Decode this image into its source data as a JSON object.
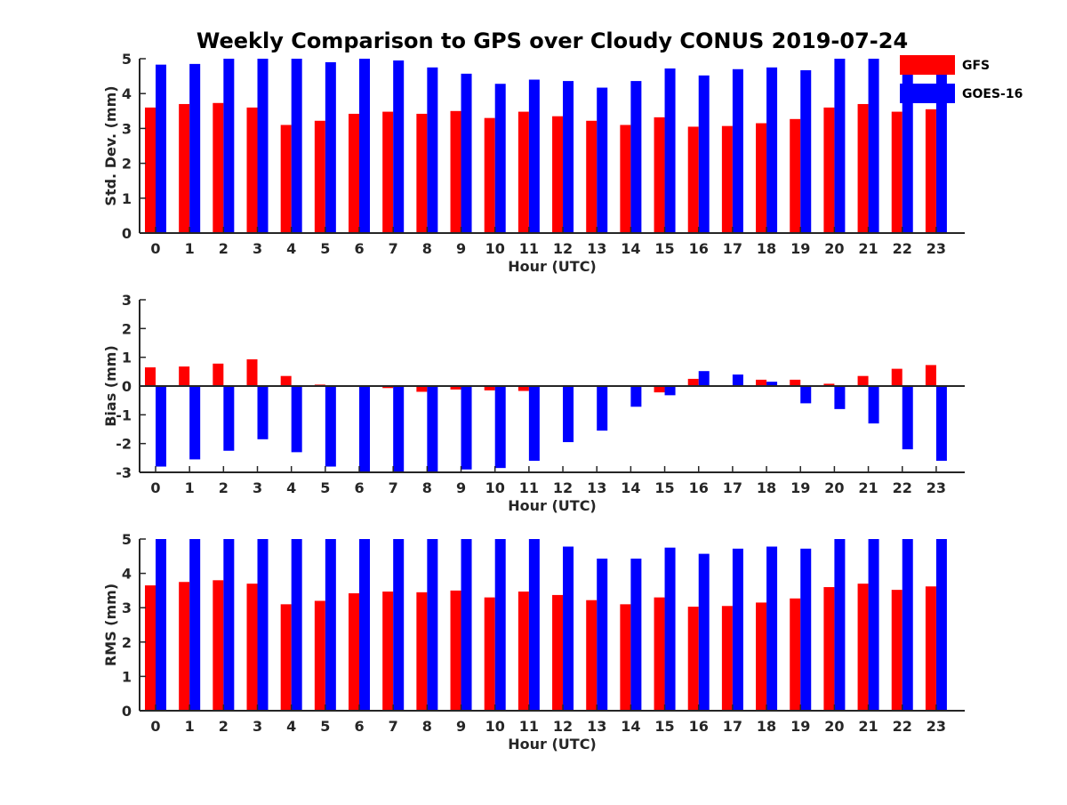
{
  "title": "Weekly Comparison to GPS over Cloudy CONUS 2019-07-24",
  "legend": {
    "placement": "top-right",
    "entries": [
      {
        "name": "GFS",
        "color": "#ff0000"
      },
      {
        "name": "GOES-16",
        "color": "#0000ff"
      }
    ]
  },
  "chart_data": [
    {
      "type": "bar",
      "xlabel": "Hour (UTC)",
      "ylabel": "Std. Dev. (mm)",
      "ylim": [
        0,
        5
      ],
      "yticks": [
        "0",
        "1",
        "2",
        "3",
        "4",
        "5"
      ],
      "categories": [
        "0",
        "1",
        "2",
        "3",
        "4",
        "5",
        "6",
        "7",
        "8",
        "9",
        "10",
        "11",
        "12",
        "13",
        "14",
        "15",
        "16",
        "17",
        "18",
        "19",
        "20",
        "21",
        "22",
        "23"
      ],
      "series": [
        {
          "name": "GFS",
          "color": "#ff0000",
          "values": [
            3.6,
            3.7,
            3.73,
            3.6,
            3.1,
            3.22,
            3.42,
            3.48,
            3.42,
            3.5,
            3.3,
            3.48,
            3.35,
            3.22,
            3.1,
            3.32,
            3.05,
            3.07,
            3.15,
            3.27,
            3.6,
            3.7,
            3.48,
            3.55
          ]
        },
        {
          "name": "GOES-16",
          "color": "#0000ff",
          "values": [
            4.83,
            4.85,
            5.0,
            5.0,
            5.0,
            4.9,
            5.0,
            4.95,
            4.75,
            4.57,
            4.28,
            4.4,
            4.36,
            4.17,
            4.36,
            4.72,
            4.52,
            4.7,
            4.75,
            4.67,
            5.0,
            5.0,
            4.82,
            4.6
          ]
        }
      ]
    },
    {
      "type": "bar",
      "xlabel": "Hour (UTC)",
      "ylabel": "Bias (mm)",
      "ylim": [
        -3,
        3
      ],
      "yticks": [
        "-3",
        "-2",
        "-1",
        "0",
        "1",
        "2",
        "3"
      ],
      "categories": [
        "0",
        "1",
        "2",
        "3",
        "4",
        "5",
        "6",
        "7",
        "8",
        "9",
        "10",
        "11",
        "12",
        "13",
        "14",
        "15",
        "16",
        "17",
        "18",
        "19",
        "20",
        "21",
        "22",
        "23"
      ],
      "series": [
        {
          "name": "GFS",
          "color": "#ff0000",
          "values": [
            0.65,
            0.68,
            0.78,
            0.93,
            0.35,
            0.05,
            -0.02,
            -0.07,
            -0.2,
            -0.12,
            -0.15,
            -0.17,
            -0.03,
            0.0,
            0.0,
            -0.22,
            0.25,
            0.03,
            0.22,
            0.22,
            0.08,
            0.35,
            0.6,
            0.73
          ]
        },
        {
          "name": "GOES-16",
          "color": "#0000ff",
          "values": [
            -2.8,
            -2.55,
            -2.25,
            -1.85,
            -2.3,
            -2.8,
            -3.0,
            -3.0,
            -3.0,
            -2.9,
            -2.85,
            -2.6,
            -1.95,
            -1.55,
            -0.72,
            -0.32,
            0.52,
            0.4,
            0.15,
            -0.6,
            -0.8,
            -1.3,
            -2.2,
            -2.6
          ]
        }
      ]
    },
    {
      "type": "bar",
      "xlabel": "Hour (UTC)",
      "ylabel": "RMS (mm)",
      "ylim": [
        0,
        5
      ],
      "yticks": [
        "0",
        "1",
        "2",
        "3",
        "4",
        "5"
      ],
      "categories": [
        "0",
        "1",
        "2",
        "3",
        "4",
        "5",
        "6",
        "7",
        "8",
        "9",
        "10",
        "11",
        "12",
        "13",
        "14",
        "15",
        "16",
        "17",
        "18",
        "19",
        "20",
        "21",
        "22",
        "23"
      ],
      "series": [
        {
          "name": "GFS",
          "color": "#ff0000",
          "values": [
            3.65,
            3.75,
            3.8,
            3.7,
            3.1,
            3.2,
            3.42,
            3.47,
            3.45,
            3.5,
            3.3,
            3.47,
            3.37,
            3.22,
            3.1,
            3.3,
            3.03,
            3.05,
            3.15,
            3.27,
            3.6,
            3.7,
            3.52,
            3.62
          ]
        },
        {
          "name": "GOES-16",
          "color": "#0000ff",
          "values": [
            5.0,
            5.0,
            5.0,
            5.0,
            5.0,
            5.0,
            5.0,
            5.0,
            5.0,
            5.0,
            5.0,
            5.0,
            4.78,
            4.43,
            4.43,
            4.75,
            4.57,
            4.72,
            4.78,
            4.72,
            5.0,
            5.0,
            5.0,
            5.0
          ]
        }
      ]
    }
  ]
}
